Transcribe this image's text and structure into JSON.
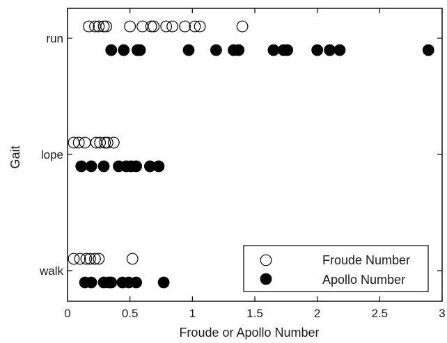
{
  "chart_data": {
    "type": "scatter",
    "title": "",
    "xlabel": "Froude or Apollo Number",
    "ylabel": "Gait",
    "xlim": [
      0,
      3
    ],
    "x_ticks": [
      0,
      0.5,
      1,
      1.5,
      2,
      2.5,
      3
    ],
    "x_tick_labels": [
      "0",
      "0.5",
      "1",
      "1.5",
      "2",
      "2.5",
      "3"
    ],
    "categories": [
      "walk",
      "lope",
      "run"
    ],
    "grid": false,
    "legend_position": "bottom-right",
    "series": [
      {
        "name": "Froude Number",
        "marker": "open-circle",
        "color": "#000000",
        "points": [
          {
            "gait": "run",
            "x": 0.17
          },
          {
            "gait": "run",
            "x": 0.22
          },
          {
            "gait": "run",
            "x": 0.25
          },
          {
            "gait": "run",
            "x": 0.29
          },
          {
            "gait": "run",
            "x": 0.31
          },
          {
            "gait": "run",
            "x": 0.5
          },
          {
            "gait": "run",
            "x": 0.6
          },
          {
            "gait": "run",
            "x": 0.67
          },
          {
            "gait": "run",
            "x": 0.69
          },
          {
            "gait": "run",
            "x": 0.79
          },
          {
            "gait": "run",
            "x": 0.84
          },
          {
            "gait": "run",
            "x": 0.94
          },
          {
            "gait": "run",
            "x": 1.02
          },
          {
            "gait": "run",
            "x": 1.06
          },
          {
            "gait": "run",
            "x": 1.4
          },
          {
            "gait": "lope",
            "x": 0.05
          },
          {
            "gait": "lope",
            "x": 0.09
          },
          {
            "gait": "lope",
            "x": 0.14
          },
          {
            "gait": "lope",
            "x": 0.23
          },
          {
            "gait": "lope",
            "x": 0.26
          },
          {
            "gait": "lope",
            "x": 0.3
          },
          {
            "gait": "lope",
            "x": 0.32
          },
          {
            "gait": "lope",
            "x": 0.37
          },
          {
            "gait": "walk",
            "x": 0.05
          },
          {
            "gait": "walk",
            "x": 0.1
          },
          {
            "gait": "walk",
            "x": 0.15
          },
          {
            "gait": "walk",
            "x": 0.18
          },
          {
            "gait": "walk",
            "x": 0.22
          },
          {
            "gait": "walk",
            "x": 0.25
          },
          {
            "gait": "walk",
            "x": 0.52
          }
        ]
      },
      {
        "name": "Apollo Number",
        "marker": "filled-circle",
        "color": "#000000",
        "points": [
          {
            "gait": "run",
            "x": 0.35
          },
          {
            "gait": "run",
            "x": 0.45
          },
          {
            "gait": "run",
            "x": 0.56
          },
          {
            "gait": "run",
            "x": 0.58
          },
          {
            "gait": "run",
            "x": 0.97
          },
          {
            "gait": "run",
            "x": 1.19
          },
          {
            "gait": "run",
            "x": 1.33
          },
          {
            "gait": "run",
            "x": 1.37
          },
          {
            "gait": "run",
            "x": 1.65
          },
          {
            "gait": "run",
            "x": 1.73
          },
          {
            "gait": "run",
            "x": 1.76
          },
          {
            "gait": "run",
            "x": 2.0
          },
          {
            "gait": "run",
            "x": 2.1
          },
          {
            "gait": "run",
            "x": 2.18
          },
          {
            "gait": "run",
            "x": 2.89
          },
          {
            "gait": "lope",
            "x": 0.11
          },
          {
            "gait": "lope",
            "x": 0.19
          },
          {
            "gait": "lope",
            "x": 0.29
          },
          {
            "gait": "lope",
            "x": 0.41
          },
          {
            "gait": "lope",
            "x": 0.47
          },
          {
            "gait": "lope",
            "x": 0.51
          },
          {
            "gait": "lope",
            "x": 0.55
          },
          {
            "gait": "lope",
            "x": 0.66
          },
          {
            "gait": "lope",
            "x": 0.73
          },
          {
            "gait": "walk",
            "x": 0.14
          },
          {
            "gait": "walk",
            "x": 0.19
          },
          {
            "gait": "walk",
            "x": 0.29
          },
          {
            "gait": "walk",
            "x": 0.33
          },
          {
            "gait": "walk",
            "x": 0.35
          },
          {
            "gait": "walk",
            "x": 0.44
          },
          {
            "gait": "walk",
            "x": 0.49
          },
          {
            "gait": "walk",
            "x": 0.55
          },
          {
            "gait": "walk",
            "x": 0.77
          }
        ]
      }
    ]
  }
}
